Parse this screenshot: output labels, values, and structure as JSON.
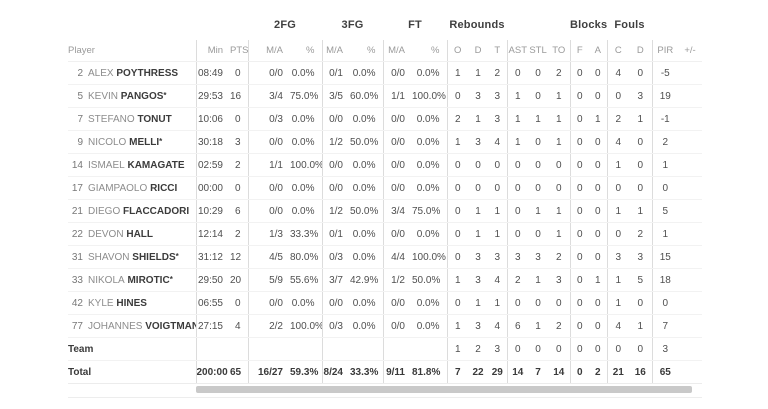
{
  "colors": {
    "scrollbar": "#c9c9c9",
    "separator": "#dcdcdc",
    "row_line": "#f2f2f2",
    "name_bold": "#3b3b3b",
    "muted_text": "#9a9a9a"
  },
  "starter_mark": "*",
  "header": {
    "player_label": "Player",
    "groups": [
      {
        "label": "2FG",
        "span": 2
      },
      {
        "label": "3FG",
        "span": 2
      },
      {
        "label": "FT",
        "span": 2
      },
      {
        "label": "Rebounds",
        "span": 3
      },
      {
        "label": "",
        "span": 3
      },
      {
        "label": "Blocks",
        "span": 2
      },
      {
        "label": "Fouls",
        "span": 2
      },
      {
        "label": "",
        "span": 2
      }
    ],
    "subcolumns": [
      "Min",
      "PTS",
      "M/A",
      "%",
      "M/A",
      "%",
      "M/A",
      "%",
      "O",
      "D",
      "T",
      "AST",
      "STL",
      "TO",
      "F",
      "A",
      "C",
      "D",
      "PIR",
      "+/-"
    ]
  },
  "players": [
    {
      "number": "2",
      "first": "ALEX",
      "last": "POYTHRESS",
      "starter": false,
      "stats": [
        "08:49",
        "0",
        "0/0",
        "0.0%",
        "0/1",
        "0.0%",
        "0/0",
        "0.0%",
        "1",
        "1",
        "2",
        "0",
        "0",
        "2",
        "0",
        "0",
        "4",
        "0",
        "-5",
        ""
      ]
    },
    {
      "number": "5",
      "first": "KEVIN",
      "last": "PANGOS",
      "starter": true,
      "stats": [
        "29:53",
        "16",
        "3/4",
        "75.0%",
        "3/5",
        "60.0%",
        "1/1",
        "100.0%",
        "0",
        "3",
        "3",
        "1",
        "0",
        "1",
        "0",
        "0",
        "0",
        "3",
        "19",
        ""
      ]
    },
    {
      "number": "7",
      "first": "STEFANO",
      "last": "TONUT",
      "starter": false,
      "stats": [
        "10:06",
        "0",
        "0/3",
        "0.0%",
        "0/0",
        "0.0%",
        "0/0",
        "0.0%",
        "2",
        "1",
        "3",
        "1",
        "1",
        "1",
        "0",
        "1",
        "2",
        "1",
        "-1",
        ""
      ]
    },
    {
      "number": "9",
      "first": "NICOLO",
      "last": "MELLI",
      "starter": true,
      "stats": [
        "30:18",
        "3",
        "0/0",
        "0.0%",
        "1/2",
        "50.0%",
        "0/0",
        "0.0%",
        "1",
        "3",
        "4",
        "1",
        "0",
        "1",
        "0",
        "0",
        "4",
        "0",
        "2",
        ""
      ]
    },
    {
      "number": "14",
      "first": "ISMAEL",
      "last": "KAMAGATE",
      "starter": false,
      "stats": [
        "02:59",
        "2",
        "1/1",
        "100.0%",
        "0/0",
        "0.0%",
        "0/0",
        "0.0%",
        "0",
        "0",
        "0",
        "0",
        "0",
        "0",
        "0",
        "0",
        "1",
        "0",
        "1",
        ""
      ]
    },
    {
      "number": "17",
      "first": "GIAMPAOLO",
      "last": "RICCI",
      "starter": false,
      "stats": [
        "00:00",
        "0",
        "0/0",
        "0.0%",
        "0/0",
        "0.0%",
        "0/0",
        "0.0%",
        "0",
        "0",
        "0",
        "0",
        "0",
        "0",
        "0",
        "0",
        "0",
        "0",
        "0",
        ""
      ]
    },
    {
      "number": "21",
      "first": "DIEGO",
      "last": "FLACCADORI",
      "starter": false,
      "stats": [
        "10:29",
        "6",
        "0/0",
        "0.0%",
        "1/2",
        "50.0%",
        "3/4",
        "75.0%",
        "0",
        "1",
        "1",
        "0",
        "1",
        "1",
        "0",
        "0",
        "1",
        "1",
        "5",
        ""
      ]
    },
    {
      "number": "22",
      "first": "DEVON",
      "last": "HALL",
      "starter": false,
      "stats": [
        "12:14",
        "2",
        "1/3",
        "33.3%",
        "0/1",
        "0.0%",
        "0/0",
        "0.0%",
        "0",
        "1",
        "1",
        "0",
        "0",
        "1",
        "0",
        "0",
        "0",
        "2",
        "1",
        ""
      ]
    },
    {
      "number": "31",
      "first": "SHAVON",
      "last": "SHIELDS",
      "starter": true,
      "stats": [
        "31:12",
        "12",
        "4/5",
        "80.0%",
        "0/3",
        "0.0%",
        "4/4",
        "100.0%",
        "0",
        "3",
        "3",
        "3",
        "3",
        "2",
        "0",
        "0",
        "3",
        "3",
        "15",
        ""
      ]
    },
    {
      "number": "33",
      "first": "NIKOLA",
      "last": "MIROTIC",
      "starter": true,
      "stats": [
        "29:50",
        "20",
        "5/9",
        "55.6%",
        "3/7",
        "42.9%",
        "1/2",
        "50.0%",
        "1",
        "3",
        "4",
        "2",
        "1",
        "3",
        "0",
        "1",
        "1",
        "5",
        "18",
        ""
      ]
    },
    {
      "number": "42",
      "first": "KYLE",
      "last": "HINES",
      "starter": false,
      "stats": [
        "06:55",
        "0",
        "0/0",
        "0.0%",
        "0/0",
        "0.0%",
        "0/0",
        "0.0%",
        "0",
        "1",
        "1",
        "0",
        "0",
        "0",
        "0",
        "0",
        "1",
        "0",
        "0",
        ""
      ]
    },
    {
      "number": "77",
      "first": "JOHANNES",
      "last": "VOIGTMANN",
      "starter": true,
      "stats": [
        "27:15",
        "4",
        "2/2",
        "100.0%",
        "0/3",
        "0.0%",
        "0/0",
        "0.0%",
        "1",
        "3",
        "4",
        "6",
        "1",
        "2",
        "0",
        "0",
        "4",
        "1",
        "7",
        ""
      ]
    }
  ],
  "team_row": {
    "label": "Team",
    "stats": [
      "",
      "",
      "",
      "",
      "",
      "",
      "",
      "",
      "1",
      "2",
      "3",
      "0",
      "0",
      "0",
      "0",
      "0",
      "0",
      "0",
      "3",
      ""
    ]
  },
  "total_row": {
    "label": "Total",
    "stats": [
      "200:00",
      "65",
      "16/27",
      "59.3%",
      "8/24",
      "33.3%",
      "9/11",
      "81.8%",
      "7",
      "22",
      "29",
      "14",
      "7",
      "14",
      "0",
      "2",
      "21",
      "16",
      "65",
      ""
    ]
  }
}
